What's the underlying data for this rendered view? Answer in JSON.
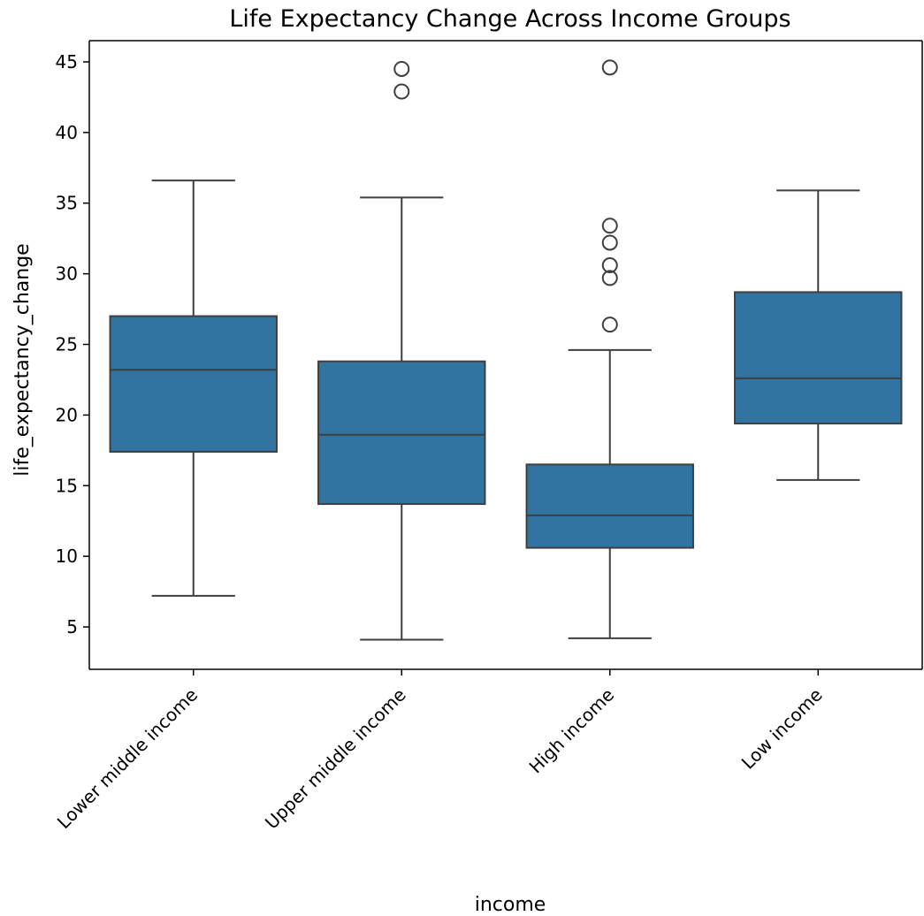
{
  "chart_data": {
    "type": "box",
    "title": "Life Expectancy Change Across Income Groups",
    "xlabel": "income",
    "ylabel": "life_expectancy_change",
    "ylim": [
      2.0,
      46.5
    ],
    "yticks": [
      5,
      10,
      15,
      20,
      25,
      30,
      35,
      40,
      45
    ],
    "categories": [
      "Lower middle income",
      "Upper middle income",
      "High income",
      "Low income"
    ],
    "box_color": "#3274a1",
    "line_color": "#3f3f3f",
    "boxes": [
      {
        "category": "Lower middle income",
        "whisker_low": 7.2,
        "q1": 17.4,
        "median": 23.2,
        "q3": 27.0,
        "whisker_high": 36.6,
        "outliers": []
      },
      {
        "category": "Upper middle income",
        "whisker_low": 4.1,
        "q1": 13.7,
        "median": 18.6,
        "q3": 23.8,
        "whisker_high": 35.4,
        "outliers": [
          42.9,
          44.5
        ]
      },
      {
        "category": "High income",
        "whisker_low": 4.2,
        "q1": 10.6,
        "median": 12.9,
        "q3": 16.5,
        "whisker_high": 24.6,
        "outliers": [
          26.4,
          29.7,
          30.6,
          32.2,
          33.4,
          44.6
        ]
      },
      {
        "category": "Low income",
        "whisker_low": 15.4,
        "q1": 19.4,
        "median": 22.6,
        "q3": 28.7,
        "whisker_high": 35.9,
        "outliers": []
      }
    ],
    "grid": false,
    "legend": "none"
  }
}
